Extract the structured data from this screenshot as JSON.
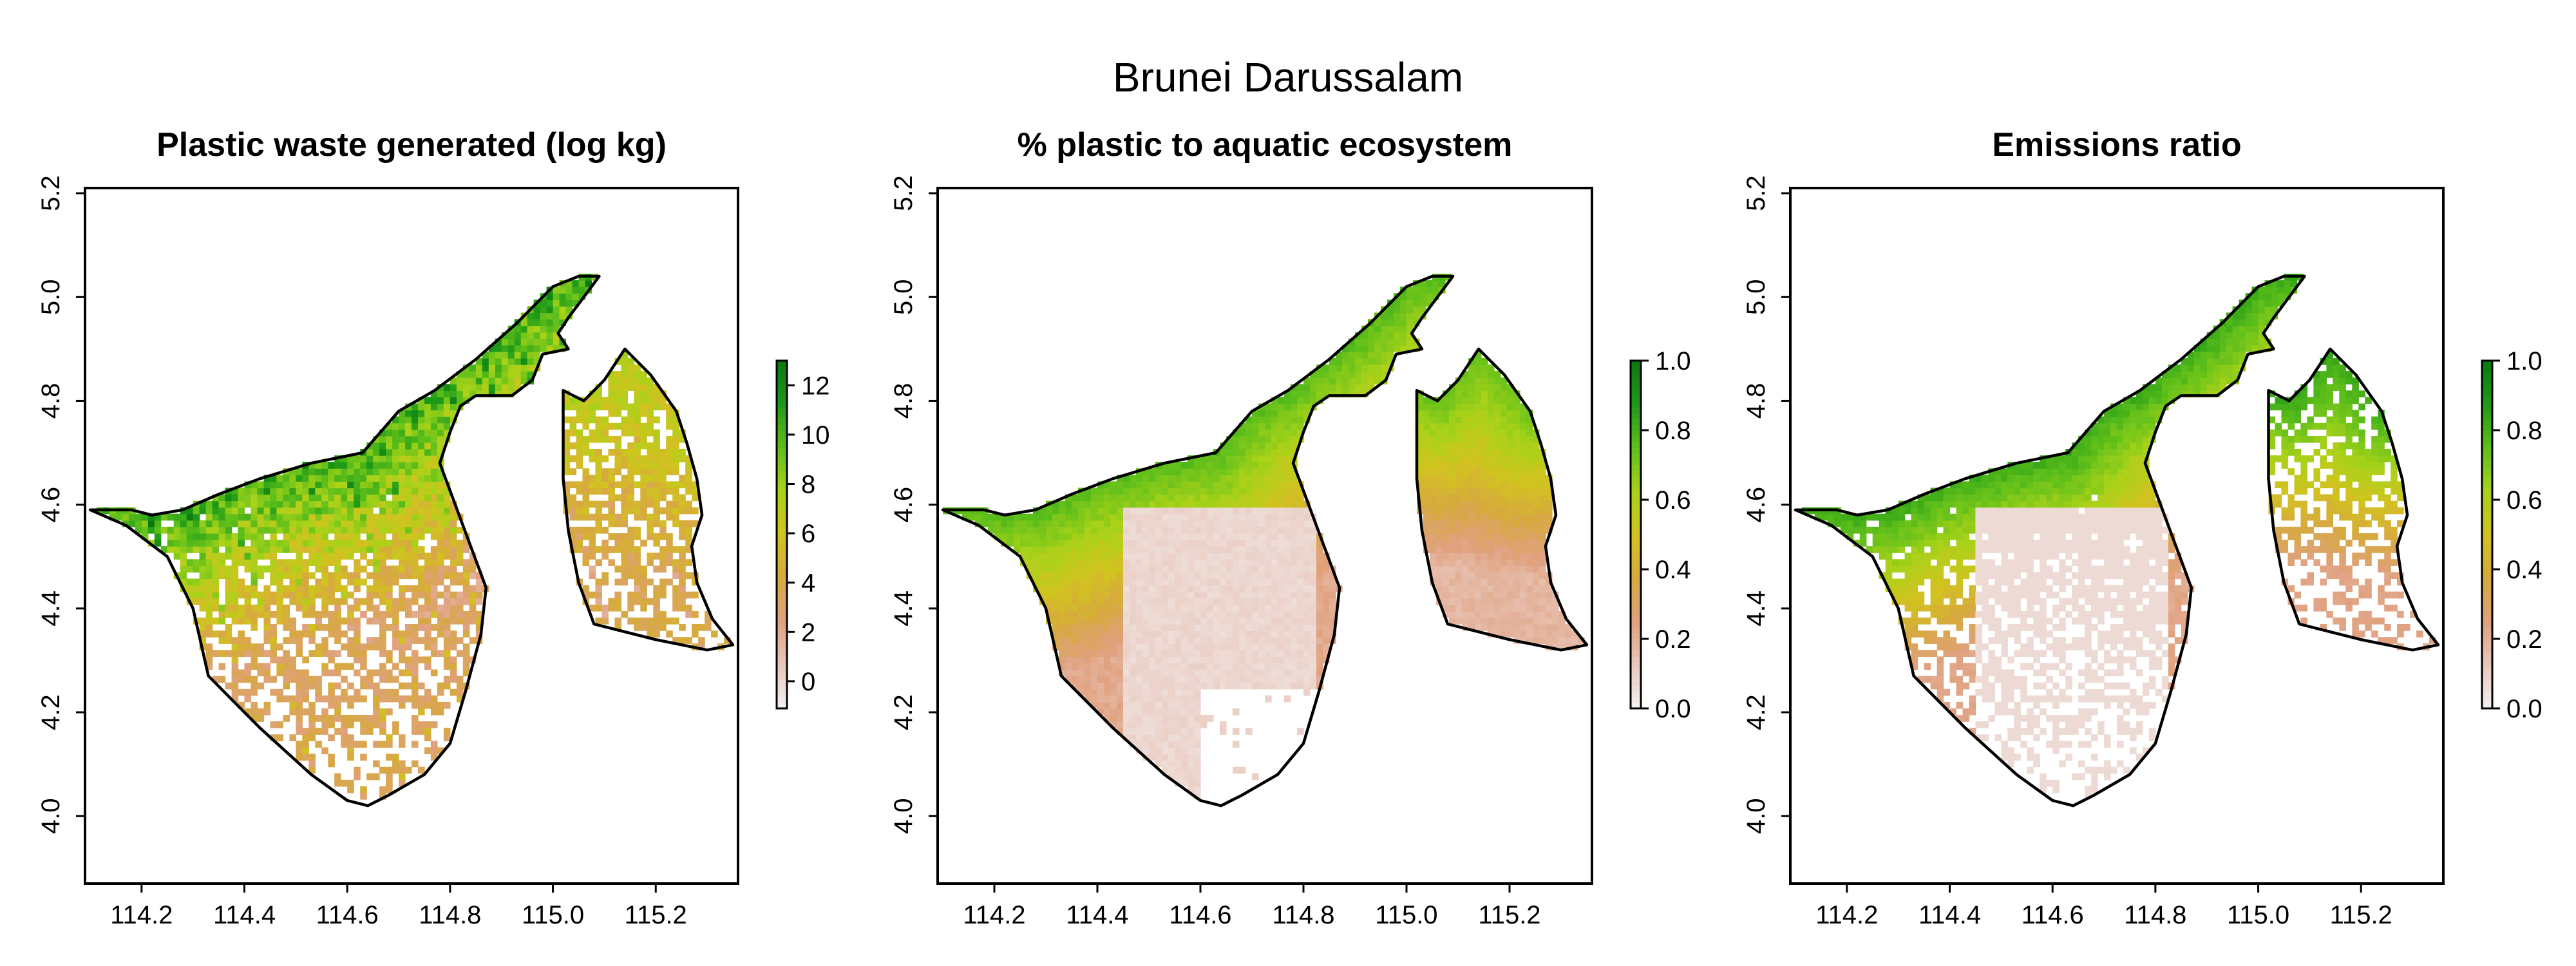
{
  "figure_title": "Brunei Darussalam",
  "colors": {
    "ramp": [
      "#f2f2f2",
      "#e9c7bc",
      "#e0a17f",
      "#d7a93f",
      "#d1c31f",
      "#a8d219",
      "#5fbf1a",
      "#1f9a17",
      "#0a7a10"
    ]
  },
  "chart_data": [
    {
      "type": "heatmap",
      "title": "Plastic waste generated (log kg)",
      "x_ticks": [
        "114.2",
        "114.4",
        "114.6",
        "114.8",
        "115.0",
        "115.2"
      ],
      "y_ticks": [
        "4.0",
        "4.2",
        "4.4",
        "4.6",
        "4.8",
        "5.0",
        "5.2"
      ],
      "xlim": [
        114.09,
        115.36
      ],
      "ylim": [
        3.87,
        5.21
      ],
      "legend_ticks": [
        "0",
        "2",
        "4",
        "6",
        "8",
        "10",
        "12"
      ],
      "legend_range": [
        -1.1,
        13
      ],
      "pattern": "waste"
    },
    {
      "type": "heatmap",
      "title": "% plastic to aquatic ecosystem",
      "x_ticks": [
        "114.2",
        "114.4",
        "114.6",
        "114.8",
        "115.0",
        "115.2"
      ],
      "y_ticks": [
        "4.0",
        "4.2",
        "4.4",
        "4.6",
        "4.8",
        "5.0",
        "5.2"
      ],
      "xlim": [
        114.09,
        115.36
      ],
      "ylim": [
        3.87,
        5.21
      ],
      "legend_ticks": [
        "0.0",
        "0.2",
        "0.4",
        "0.6",
        "0.8",
        "1.0"
      ],
      "legend_range": [
        0,
        1
      ],
      "pattern": "aquatic"
    },
    {
      "type": "heatmap",
      "title": "Emissions ratio",
      "x_ticks": [
        "114.2",
        "114.4",
        "114.6",
        "114.8",
        "115.0",
        "115.2"
      ],
      "y_ticks": [
        "4.0",
        "4.2",
        "4.4",
        "4.6",
        "4.8",
        "5.0",
        "5.2"
      ],
      "xlim": [
        114.09,
        115.36
      ],
      "ylim": [
        3.87,
        5.21
      ],
      "legend_ticks": [
        "0.0",
        "0.2",
        "0.4",
        "0.6",
        "0.8",
        "1.0"
      ],
      "legend_range": [
        0,
        1
      ],
      "pattern": "emissions"
    }
  ],
  "boundary": {
    "west": [
      [
        114.1,
        4.59
      ],
      [
        114.18,
        4.59
      ],
      [
        114.22,
        4.58
      ],
      [
        114.28,
        4.59
      ],
      [
        114.35,
        4.62
      ],
      [
        114.43,
        4.65
      ],
      [
        114.53,
        4.68
      ],
      [
        114.63,
        4.7
      ],
      [
        114.7,
        4.78
      ],
      [
        114.77,
        4.82
      ],
      [
        114.85,
        4.88
      ],
      [
        114.93,
        4.95
      ],
      [
        115.0,
        5.02
      ],
      [
        115.05,
        5.04
      ],
      [
        115.09,
        5.04
      ],
      [
        115.06,
        5.0
      ],
      [
        115.03,
        4.96
      ],
      [
        115.01,
        4.93
      ],
      [
        115.03,
        4.9
      ],
      [
        114.98,
        4.89
      ],
      [
        114.96,
        4.84
      ],
      [
        114.92,
        4.81
      ],
      [
        114.85,
        4.81
      ],
      [
        114.82,
        4.79
      ],
      [
        114.8,
        4.74
      ],
      [
        114.78,
        4.68
      ],
      [
        114.81,
        4.6
      ],
      [
        114.84,
        4.52
      ],
      [
        114.87,
        4.44
      ],
      [
        114.86,
        4.35
      ],
      [
        114.83,
        4.24
      ],
      [
        114.8,
        4.14
      ],
      [
        114.75,
        4.08
      ],
      [
        114.68,
        4.04
      ],
      [
        114.64,
        4.02
      ],
      [
        114.6,
        4.03
      ],
      [
        114.53,
        4.08
      ],
      [
        114.43,
        4.17
      ],
      [
        114.33,
        4.27
      ],
      [
        114.3,
        4.4
      ],
      [
        114.25,
        4.5
      ],
      [
        114.17,
        4.56
      ],
      [
        114.1,
        4.59
      ]
    ],
    "east": [
      [
        115.02,
        4.82
      ],
      [
        115.06,
        4.8
      ],
      [
        115.1,
        4.84
      ],
      [
        115.14,
        4.9
      ],
      [
        115.19,
        4.85
      ],
      [
        115.24,
        4.78
      ],
      [
        115.26,
        4.72
      ],
      [
        115.28,
        4.65
      ],
      [
        115.29,
        4.58
      ],
      [
        115.27,
        4.52
      ],
      [
        115.28,
        4.45
      ],
      [
        115.31,
        4.38
      ],
      [
        115.35,
        4.33
      ],
      [
        115.3,
        4.32
      ],
      [
        115.2,
        4.34
      ],
      [
        115.08,
        4.37
      ],
      [
        115.05,
        4.45
      ],
      [
        115.03,
        4.55
      ],
      [
        115.02,
        4.65
      ],
      [
        115.02,
        4.75
      ],
      [
        115.02,
        4.82
      ]
    ]
  }
}
